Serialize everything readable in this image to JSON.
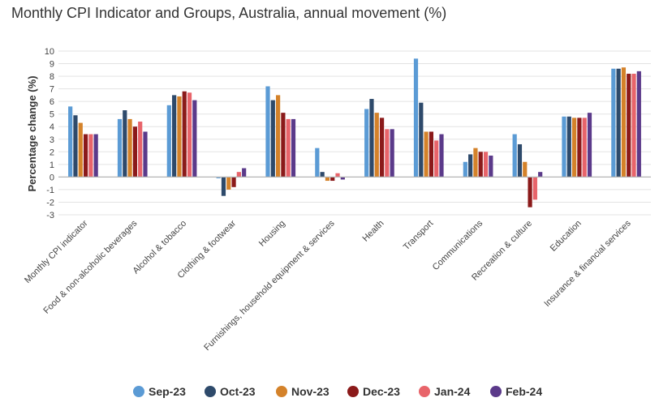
{
  "chart_data": {
    "type": "bar",
    "title": "Monthly CPI Indicator and Groups, Australia, annual movement (%)",
    "xlabel": "",
    "ylabel": "Percentage change (%)",
    "ylim": [
      -3,
      10
    ],
    "yticks": [
      -3,
      -2,
      -1,
      0,
      1,
      2,
      3,
      4,
      5,
      6,
      7,
      8,
      9,
      10
    ],
    "ytick_labels": [
      "-3",
      "-2",
      "-1",
      "0",
      "1",
      "2",
      "3",
      "4",
      "5",
      "6",
      "7",
      "8",
      "9",
      "10"
    ],
    "legend_position": "bottom",
    "categories": [
      "Monthly CPI indicator",
      "Food & non-alcoholic beverages",
      "Alcohol & tobacco",
      "Clothing & footwear",
      "Housing",
      "Furnishings, household equipment & services",
      "Health",
      "Transport",
      "Communications",
      "Recreation & culture",
      "Education",
      "Insurance & financial services"
    ],
    "series": [
      {
        "name": "Sep-23",
        "color": "#5b9bd5",
        "values": [
          5.6,
          4.6,
          5.7,
          -0.1,
          7.2,
          2.3,
          5.4,
          9.4,
          1.2,
          3.4,
          4.8,
          8.6
        ]
      },
      {
        "name": "Oct-23",
        "color": "#2e4a6b",
        "values": [
          4.9,
          5.3,
          6.5,
          -1.5,
          6.1,
          0.4,
          6.2,
          5.9,
          1.8,
          2.6,
          4.8,
          8.6
        ]
      },
      {
        "name": "Nov-23",
        "color": "#d4822a",
        "values": [
          4.3,
          4.6,
          6.4,
          -1.0,
          6.5,
          -0.3,
          5.1,
          3.6,
          2.3,
          1.2,
          4.7,
          8.7
        ]
      },
      {
        "name": "Dec-23",
        "color": "#8b1a1a",
        "values": [
          3.4,
          4.0,
          6.8,
          -0.8,
          5.1,
          -0.3,
          4.7,
          3.6,
          2.0,
          -2.4,
          4.7,
          8.2
        ]
      },
      {
        "name": "Jan-24",
        "color": "#e8646a",
        "values": [
          3.4,
          4.4,
          6.7,
          0.4,
          4.6,
          0.3,
          3.8,
          2.9,
          2.0,
          -1.8,
          4.7,
          8.2
        ]
      },
      {
        "name": "Feb-24",
        "color": "#5b3a8a",
        "values": [
          3.4,
          3.6,
          6.1,
          0.7,
          4.6,
          -0.2,
          3.8,
          3.4,
          1.7,
          0.4,
          5.1,
          8.4
        ]
      }
    ]
  }
}
